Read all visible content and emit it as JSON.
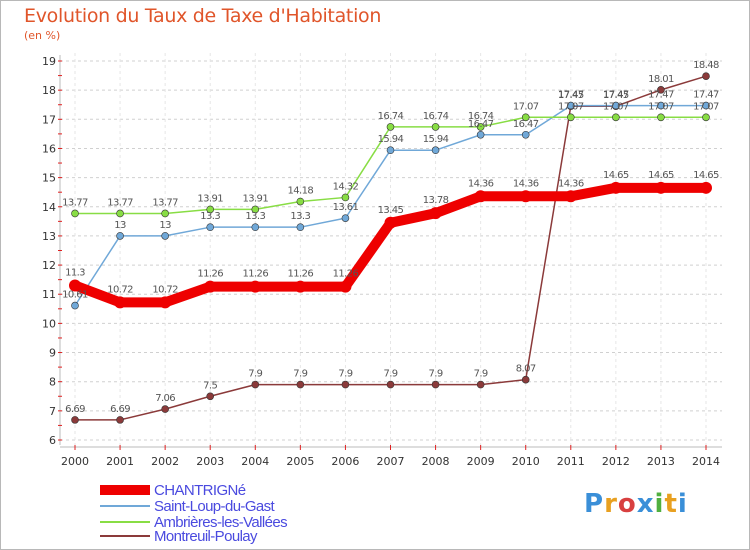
{
  "title": "Evolution du Taux de Taxe d'Habitation",
  "unit_label": "(en %)",
  "logo_text": "Proxiti",
  "colors": {
    "title": "#e0552a",
    "legend_text": "#4a4adf",
    "grid": "#d0d0d0",
    "axis_tick": "#e02020"
  },
  "chart_data": {
    "type": "line",
    "title": "Evolution du Taux de Taxe d'Habitation",
    "ylabel": "(en %)",
    "xlabel": "",
    "x": [
      "2000",
      "2001",
      "2002",
      "2003",
      "2004",
      "2005",
      "2006",
      "2007",
      "2008",
      "2009",
      "2010",
      "2011",
      "2012",
      "2013",
      "2014"
    ],
    "ylim": [
      6,
      19
    ],
    "yticks": [
      6,
      7,
      8,
      9,
      10,
      11,
      12,
      13,
      14,
      15,
      16,
      17,
      18,
      19
    ],
    "grid": "horizontal-dashed",
    "legend_position": "bottom-left",
    "series": [
      {
        "name": "CHANTRIGNé",
        "color": "#ee0000",
        "width": 10,
        "values": [
          11.3,
          10.72,
          10.72,
          11.26,
          11.26,
          11.26,
          11.26,
          13.45,
          13.78,
          14.36,
          14.36,
          14.36,
          14.65,
          14.65,
          14.65
        ],
        "labels": [
          "11.3",
          "10.72",
          "10.72",
          "11.26",
          "11.26",
          "11.26",
          "11.26",
          "13.45",
          "13.78",
          "14.36",
          "14.36",
          "14.36",
          "14.65",
          "14.65",
          "14.65"
        ]
      },
      {
        "name": "Saint-Loup-du-Gast",
        "color": "#70a8d8",
        "width": 1.5,
        "values": [
          10.61,
          13,
          13,
          13.3,
          13.3,
          13.3,
          13.61,
          15.94,
          15.94,
          16.47,
          16.47,
          17.47,
          17.47,
          17.47,
          17.47
        ],
        "labels": [
          "10.61",
          "13",
          "13",
          "13.3",
          "13.3",
          "13.3",
          "13.61",
          "15.94",
          "15.94",
          "16.47",
          "16.47",
          "17.47",
          "17.47",
          "17.47",
          "17.47"
        ]
      },
      {
        "name": "Ambrières-les-Vallées",
        "color": "#88dd44",
        "width": 1.5,
        "values": [
          13.77,
          13.77,
          13.77,
          13.91,
          13.91,
          14.18,
          14.32,
          16.74,
          16.74,
          16.74,
          17.07,
          17.07,
          17.07,
          17.07,
          17.07
        ],
        "labels": [
          "13.77",
          "13.77",
          "13.77",
          "13.91",
          "13.91",
          "14.18",
          "14.32",
          "16.74",
          "16.74",
          "16.74",
          "17.07",
          "17.07",
          "17.07",
          "17.07",
          "17.07"
        ]
      },
      {
        "name": "Montreuil-Poulay",
        "color": "#8b3a3a",
        "width": 1.5,
        "values": [
          6.69,
          6.69,
          7.06,
          7.5,
          7.9,
          7.9,
          7.9,
          7.9,
          7.9,
          7.9,
          8.07,
          17.45,
          17.45,
          18.01,
          18.48
        ],
        "labels": [
          "6.69",
          "6.69",
          "7.06",
          "7.5",
          "7.9",
          "7.9",
          "7.9",
          "7.9",
          "7.9",
          "7.9",
          "8.07",
          "17.45",
          "17.45",
          "18.01",
          "18.48"
        ]
      }
    ]
  }
}
